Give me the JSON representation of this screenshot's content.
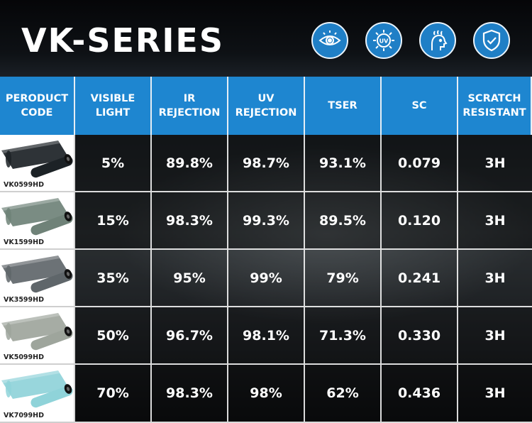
{
  "title": "VK-SERIES",
  "colors": {
    "accent": "#1e86d0",
    "icon_bg": "#1f7fc6"
  },
  "header_icons": [
    "eye-icon",
    "uv-icon",
    "heat-person-icon",
    "shield-check-icon"
  ],
  "table": {
    "headers": {
      "product_code": "PERODUCT CODE",
      "visible_light": "VISIBLE LIGHT",
      "ir_rejection": "IR REJECTION",
      "uv_rejection": "UV REJECTION",
      "tser": "TSER",
      "sc": "SC",
      "scratch_resistant": "SCRATCH RESISTANT"
    },
    "rows": [
      {
        "code": "VK0599HD",
        "visible_light": "5%",
        "ir_rejection": "89.8%",
        "uv_rejection": "98.7%",
        "tser": "93.1%",
        "sc": "0.079",
        "scratch": "3H",
        "film_color": "#1c2226"
      },
      {
        "code": "VK1599HD",
        "visible_light": "15%",
        "ir_rejection": "98.3%",
        "uv_rejection": "99.3%",
        "tser": "89.5%",
        "sc": "0.120",
        "scratch": "3H",
        "film_color": "#6f8278"
      },
      {
        "code": "VK3599HD",
        "visible_light": "35%",
        "ir_rejection": "95%",
        "uv_rejection": "99%",
        "tser": "79%",
        "sc": "0.241",
        "scratch": "3H",
        "film_color": "#5f666a"
      },
      {
        "code": "VK5099HD",
        "visible_light": "50%",
        "ir_rejection": "96.7%",
        "uv_rejection": "98.1%",
        "tser": "71.3%",
        "sc": "0.330",
        "scratch": "3H",
        "film_color": "#9ea59c"
      },
      {
        "code": "VK7099HD",
        "visible_light": "70%",
        "ir_rejection": "98.3%",
        "uv_rejection": "98%",
        "tser": "62%",
        "sc": "0.436",
        "scratch": "3H",
        "film_color": "#8fd3d9"
      }
    ]
  }
}
